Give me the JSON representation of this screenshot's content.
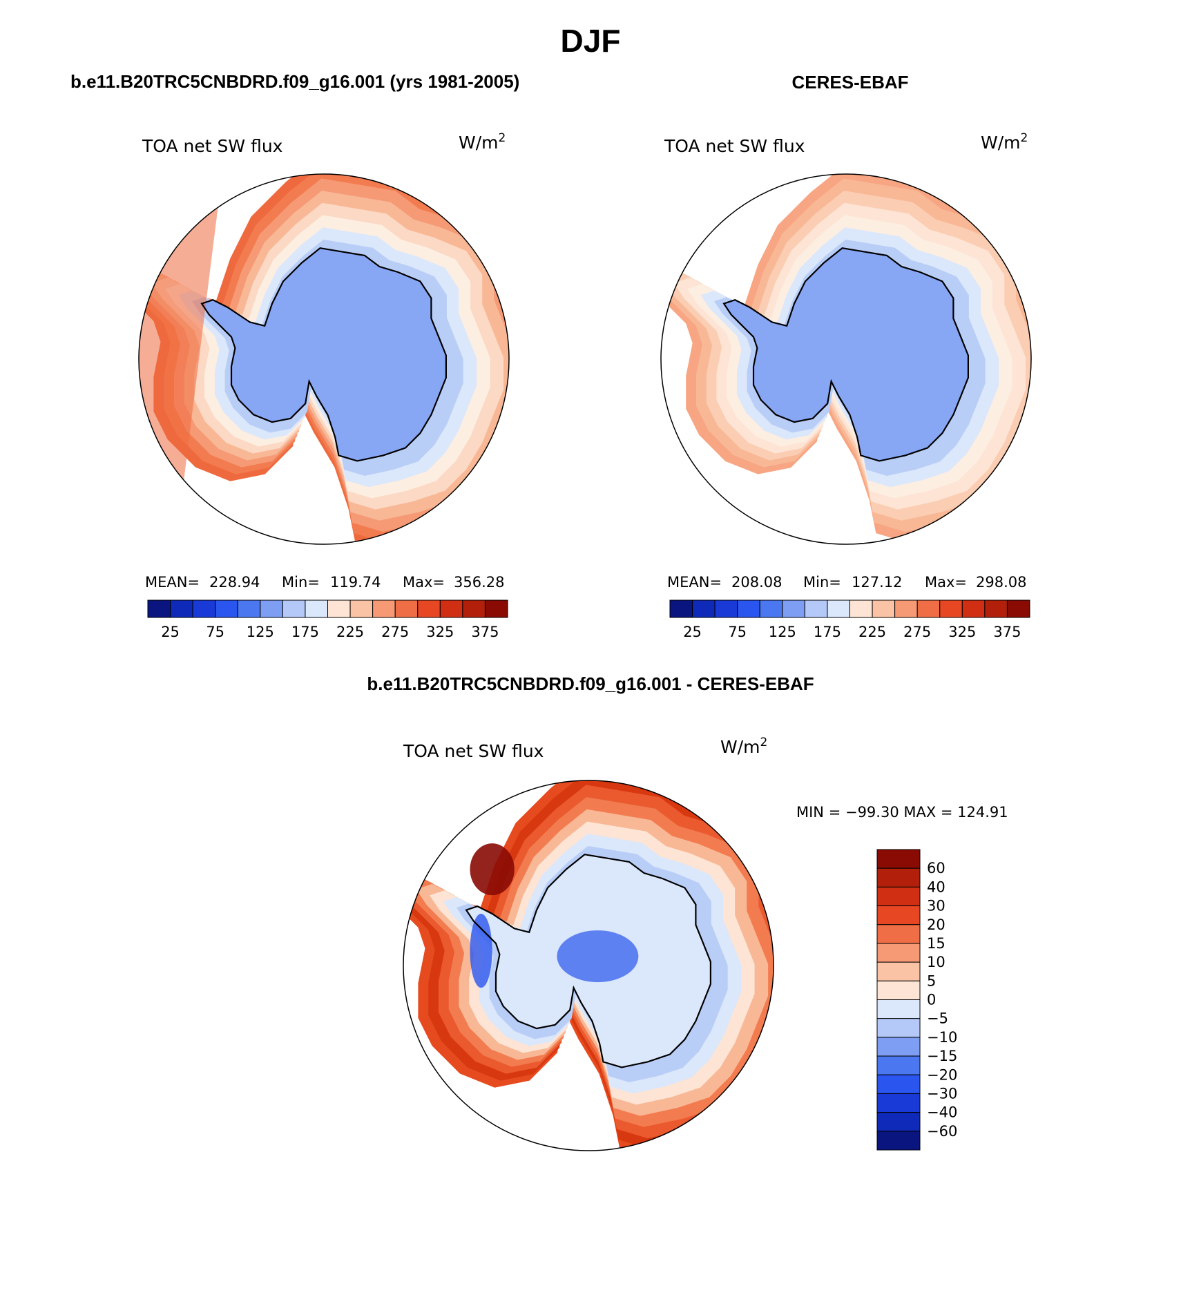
{
  "main_title": "DJF",
  "panels": [
    {
      "id": "model",
      "title": "b.e11.B20TRC5CNBDRD.f09_g16.001 (yrs 1981-2005)",
      "left_label": "TOA net SW flux",
      "units_base": "W/m",
      "units_exp": "2",
      "stats": {
        "mean_label": "MEAN=",
        "mean": "228.94",
        "min_label": "Min=",
        "min": "119.74",
        "max_label": "Max=",
        "max": "356.28"
      }
    },
    {
      "id": "obs",
      "title": "CERES-EBAF",
      "left_label": "TOA net SW flux",
      "units_base": "W/m",
      "units_exp": "2",
      "stats": {
        "mean_label": "MEAN=",
        "mean": "208.08",
        "min_label": "Min=",
        "min": "127.12",
        "max_label": "Max=",
        "max": "298.08"
      }
    }
  ],
  "abs_colorbar": {
    "colors": [
      "#0a1580",
      "#0f2ab8",
      "#1a3ad8",
      "#2a55ee",
      "#4b78f0",
      "#7e9ef4",
      "#b4c9f7",
      "#dbe7fa",
      "#fde4d4",
      "#fac3a6",
      "#f69a76",
      "#f06e45",
      "#e84724",
      "#d12f13",
      "#b2200c",
      "#8a0b04"
    ],
    "labels": [
      "25",
      "75",
      "125",
      "175",
      "225",
      "275",
      "325",
      "375"
    ]
  },
  "diff_panel": {
    "title": "b.e11.B20TRC5CNBDRD.f09_g16.001 - CERES-EBAF",
    "left_label": "TOA net SW flux",
    "units_base": "W/m",
    "units_exp": "2",
    "minmax": "MIN = −99.30 MAX = 124.91"
  },
  "diff_colorbar": {
    "colors_top_to_bottom": [
      "#8a0b04",
      "#b2200c",
      "#d12f13",
      "#e84724",
      "#f06e45",
      "#f69a76",
      "#fac3a6",
      "#fde4d4",
      "#dbe7fa",
      "#b4c9f7",
      "#7e9ef4",
      "#4b78f0",
      "#2a55ee",
      "#1a3ad8",
      "#0f2ab8",
      "#0a1580"
    ],
    "labels_top_to_bottom": [
      "60",
      "40",
      "30",
      "20",
      "15",
      "10",
      "5",
      "0",
      "−5",
      "−10",
      "−15",
      "−20",
      "−30",
      "−40",
      "−60"
    ]
  },
  "map_colors": {
    "ocean_model": [
      "#ee6a3e",
      "#f27c4f",
      "#f59a75",
      "#f8b896",
      "#fcd9c4",
      "#fdeee2",
      "#dbe7fa",
      "#b9cef7"
    ],
    "ocean_obs": [
      "#f7a582",
      "#f8b896",
      "#fbcdb3",
      "#fde4d4",
      "#fdeee2",
      "#dbe7fa",
      "#b9cef7"
    ],
    "ice": "#87a6f3",
    "diff_ocean": [
      "#e64a1f",
      "#d8380f",
      "#ea5a2e",
      "#f27c4f",
      "#f8b896",
      "#fde4d4",
      "#dbe7fa",
      "#b9cef7"
    ],
    "diff_ice": "#dbe7fa",
    "diff_ice_deep": "#2a55ee",
    "coast": "#000000"
  }
}
